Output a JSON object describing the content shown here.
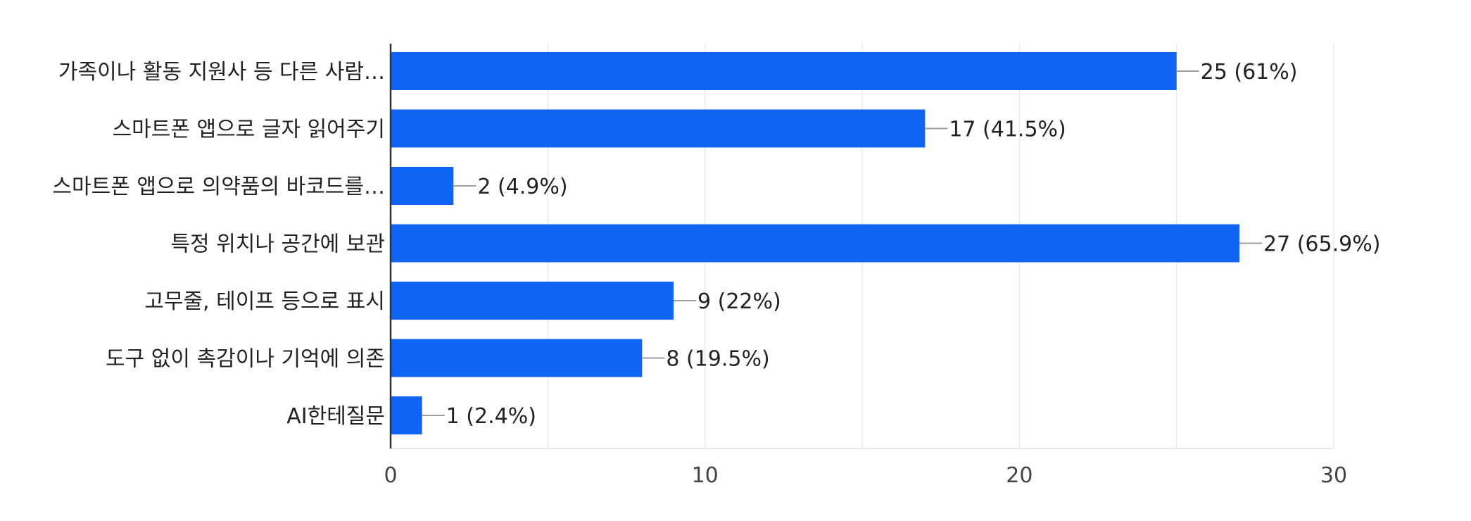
{
  "chart_data": {
    "type": "bar",
    "orientation": "horizontal",
    "categories": [
      "가족이나 활동 지원사 등 다른 사람…",
      "스마트폰 앱으로 글자 읽어주기",
      "스마트폰 앱으로 의약품의 바코드를…",
      "특정 위치나 공간에 보관",
      "고무줄, 테이프 등으로 표시",
      "도구 없이 촉감이나 기억에 의존",
      "AI한테질문"
    ],
    "values": [
      25,
      17,
      2,
      27,
      9,
      8,
      1
    ],
    "data_labels": [
      "25 (61%)",
      "17 (41.5%)",
      "2 (4.9%)",
      "27 (65.9%)",
      "9 (22%)",
      "8 (19.5%)",
      "1 (2.4%)"
    ],
    "xlim": [
      0,
      30
    ],
    "xticks": [
      0,
      10,
      20,
      30
    ],
    "xtick_labels": [
      "0",
      "10",
      "20",
      "30"
    ],
    "grid": true,
    "bar_color": "#0f65f5",
    "gridline_color": "#e8e8e8",
    "axis_color": "#333333",
    "leader_color": "#9e9e9e"
  }
}
